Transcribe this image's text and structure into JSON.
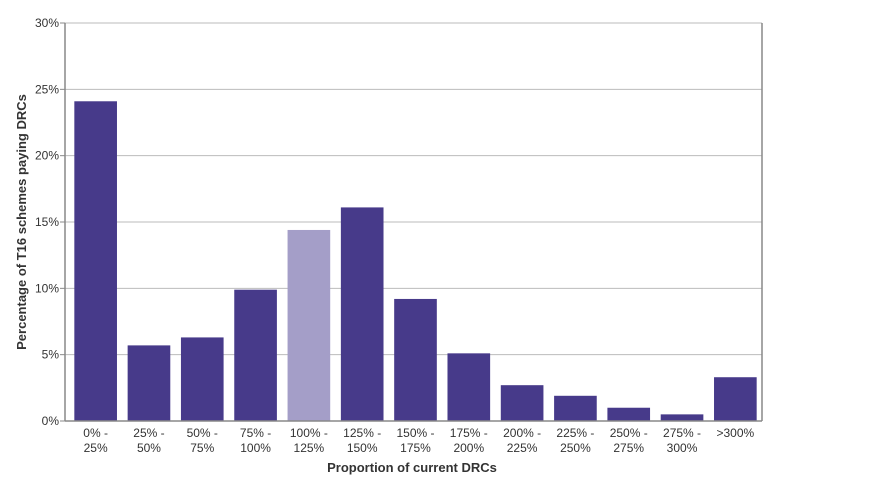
{
  "chart_data": {
    "type": "bar",
    "title": "",
    "xlabel": "Proportion of current DRCs",
    "ylabel": "Percentage of T16 schemes paying DRCs",
    "ylim": [
      0,
      30
    ],
    "yticks": [
      "0%",
      "5%",
      "10%",
      "15%",
      "20%",
      "25%",
      "30%"
    ],
    "grid": true,
    "categories": [
      [
        "0% -",
        "25%"
      ],
      [
        "25% -",
        "50%"
      ],
      [
        "50% -",
        "75%"
      ],
      [
        "75% -",
        "100%"
      ],
      [
        "100% -",
        "125%"
      ],
      [
        "125% -",
        "150%"
      ],
      [
        "150% -",
        "175%"
      ],
      [
        "175% -",
        "200%"
      ],
      [
        "200% -",
        "225%"
      ],
      [
        "225% -",
        "250%"
      ],
      [
        "250% -",
        "275%"
      ],
      [
        "275% -",
        "300%"
      ],
      [
        ">300%"
      ]
    ],
    "values": [
      24.1,
      5.7,
      6.3,
      9.9,
      14.4,
      16.1,
      9.2,
      5.1,
      2.7,
      1.9,
      1.0,
      0.5,
      3.3
    ],
    "highlight_index": 4,
    "colors": {
      "bar": "#473a8a",
      "highlight": "#a49ec8",
      "grid": "#bbbbbb",
      "axis": "#888888"
    }
  }
}
